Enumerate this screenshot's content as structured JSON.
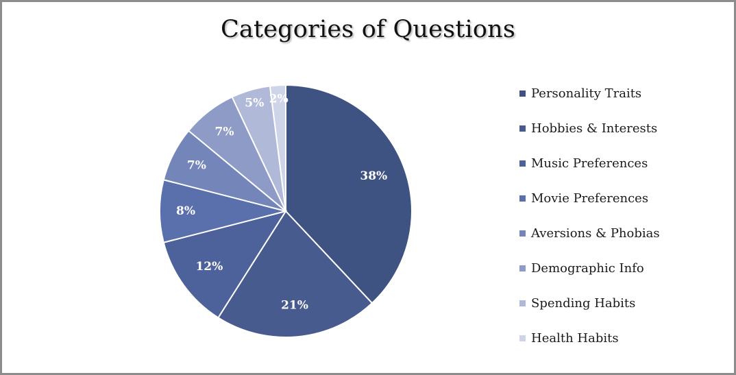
{
  "chart_data": {
    "type": "pie",
    "title": "Categories of Questions",
    "categories": [
      "Personality Traits",
      "Hobbies & Interests",
      "Music Preferences",
      "Movie Preferences",
      "Aversions & Phobias",
      "Demographic Info",
      "Spending Habits",
      "Health Habits"
    ],
    "values": [
      38,
      21,
      12,
      8,
      7,
      7,
      5,
      2
    ],
    "data_labels": [
      "38%",
      "21%",
      "12%",
      "8%",
      "7%",
      "7%",
      "5%",
      "2%"
    ],
    "colors": [
      "#3f5382",
      "#475b8f",
      "#4d629a",
      "#5a70ad",
      "#7385b9",
      "#8d9bc6",
      "#b0b9d7",
      "#cfd5e8"
    ],
    "legend_position": "right",
    "start_angle": "12 o'clock, clockwise"
  }
}
